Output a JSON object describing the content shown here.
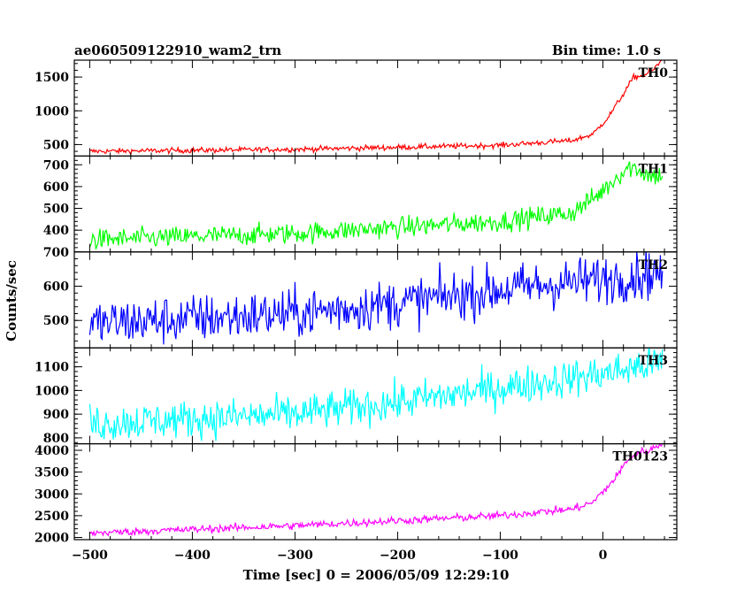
{
  "header": {
    "left_title": "ae060509122910_wam2_trn",
    "right_title": "Bin time: 1.0 s"
  },
  "chart_data": {
    "type": "line",
    "title": "ae060509122910_wam2_trn",
    "subtitle": "Bin time: 1.0 s",
    "xlabel": "Time [sec] 0 = 2006/05/09 12:29:10",
    "ylabel": "Counts/sec",
    "xlim": [
      -515,
      72
    ],
    "x_range": [
      -500,
      58
    ],
    "x_step": 1,
    "x_ticks": [
      -500,
      -400,
      -300,
      -200,
      -100,
      0
    ],
    "x_tick_labels": [
      "−500",
      "−400",
      "−300",
      "−200",
      "−100",
      "0"
    ],
    "grid": false,
    "series": [
      {
        "name": "TH0",
        "color": "#ff0000",
        "ylim": [
          330,
          1750
        ],
        "yticks": [
          500,
          1000,
          1500
        ],
        "profile": [
          [
            -500,
            400
          ],
          [
            -300,
            430
          ],
          [
            -100,
            490
          ],
          [
            -30,
            560
          ],
          [
            -10,
            650
          ],
          [
            5,
            900
          ],
          [
            20,
            1250
          ],
          [
            30,
            1500
          ],
          [
            40,
            1520
          ],
          [
            50,
            1620
          ],
          [
            58,
            1760
          ]
        ],
        "noise": 20
      },
      {
        "name": "TH1",
        "color": "#00ff00",
        "ylim": [
          300,
          740
        ],
        "yticks": [
          400,
          500,
          600,
          700
        ],
        "profile": [
          [
            -500,
            355
          ],
          [
            -300,
            385
          ],
          [
            -100,
            440
          ],
          [
            -30,
            480
          ],
          [
            -5,
            560
          ],
          [
            15,
            650
          ],
          [
            25,
            690
          ],
          [
            35,
            680
          ],
          [
            45,
            650
          ],
          [
            58,
            650
          ]
        ],
        "noise": 24
      },
      {
        "name": "TH2",
        "color": "#0000ff",
        "ylim": [
          420,
          700
        ],
        "yticks": [
          500,
          600,
          700
        ],
        "profile": [
          [
            -500,
            490
          ],
          [
            -300,
            520
          ],
          [
            -200,
            550
          ],
          [
            -100,
            590
          ],
          [
            0,
            620
          ],
          [
            58,
            640
          ]
        ],
        "noise": 36
      },
      {
        "name": "TH3",
        "color": "#00ffff",
        "ylim": [
          775,
          1180
        ],
        "yticks": [
          800,
          900,
          1000,
          1100
        ],
        "profile": [
          [
            -500,
            860
          ],
          [
            -300,
            900
          ],
          [
            -200,
            950
          ],
          [
            -100,
            1010
          ],
          [
            0,
            1070
          ],
          [
            58,
            1120
          ]
        ],
        "noise": 40
      },
      {
        "name": "TH0123",
        "color": "#ff00ff",
        "ylim": [
          1950,
          4150
        ],
        "yticks": [
          2000,
          2500,
          3000,
          3500,
          4000
        ],
        "profile": [
          [
            -500,
            2100
          ],
          [
            -300,
            2270
          ],
          [
            -100,
            2500
          ],
          [
            -30,
            2650
          ],
          [
            -10,
            2800
          ],
          [
            10,
            3300
          ],
          [
            25,
            3800
          ],
          [
            35,
            3950
          ],
          [
            45,
            4000
          ],
          [
            58,
            4150
          ]
        ],
        "noise": 45
      }
    ]
  }
}
